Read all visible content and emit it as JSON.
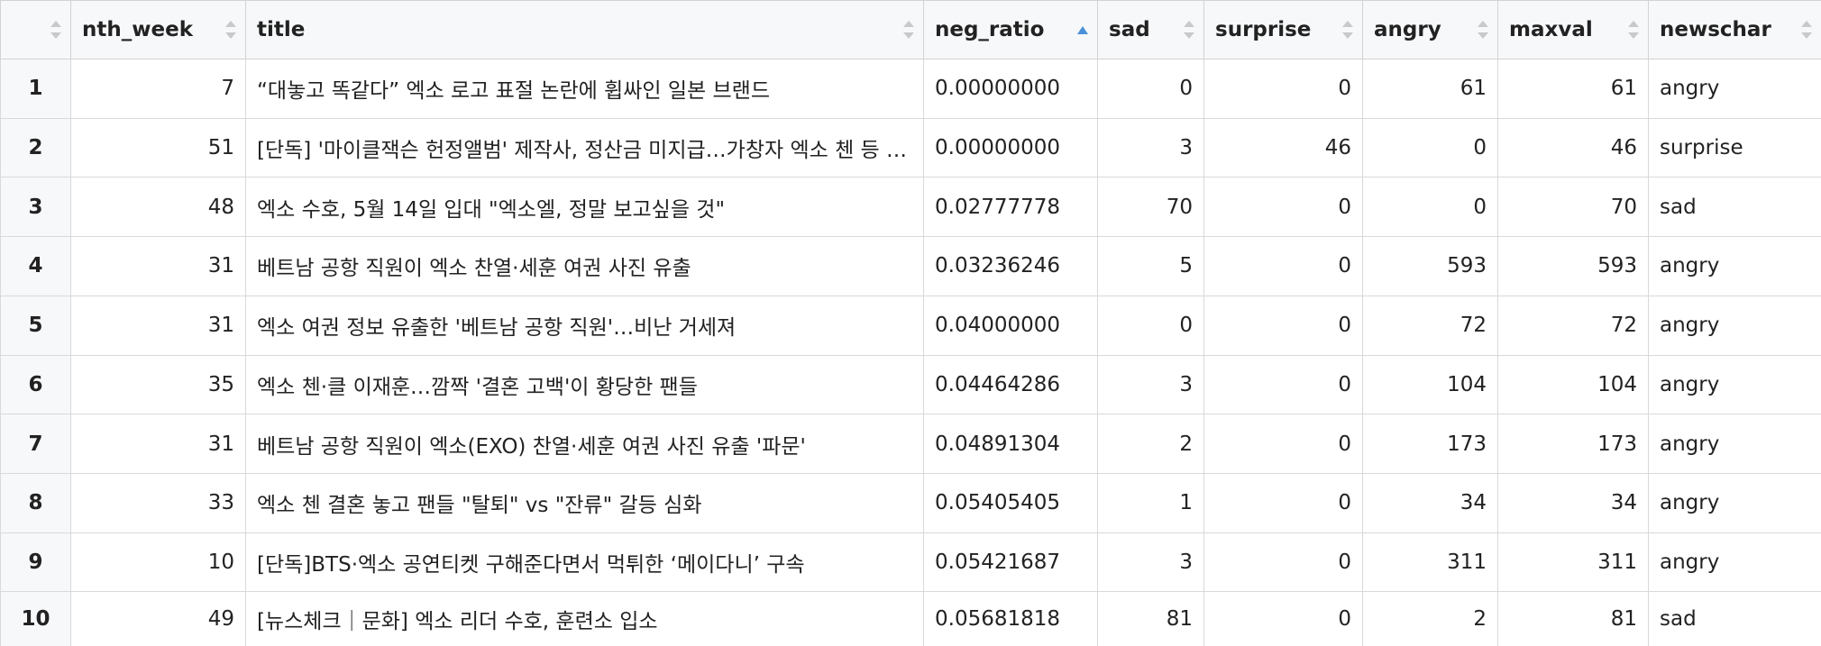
{
  "columns": {
    "rownum": "",
    "nth_week": "nth_week",
    "title": "title",
    "neg_ratio": "neg_ratio",
    "sad": "sad",
    "surprise": "surprise",
    "angry": "angry",
    "maxval": "maxval",
    "newschar": "newschar"
  },
  "sorted_column": "neg_ratio",
  "sort_direction": "ascending",
  "rows": [
    {
      "rownum": "1",
      "nth_week": "7",
      "title": "“대놓고 똑같다” 엑소 로고 표절 논란에 휩싸인 일본 브랜드",
      "neg_ratio": "0.00000000",
      "sad": "0",
      "surprise": "0",
      "angry": "61",
      "maxval": "61",
      "newschar": "angry"
    },
    {
      "rownum": "2",
      "nth_week": "51",
      "title": "[단독] '마이클잭슨 헌정앨범' 제작사, 정산금 미지급…가창자 엑소 첸 등 피해",
      "neg_ratio": "0.00000000",
      "sad": "3",
      "surprise": "46",
      "angry": "0",
      "maxval": "46",
      "newschar": "surprise"
    },
    {
      "rownum": "3",
      "nth_week": "48",
      "title": "엑소 수호, 5월 14일 입대 \"엑소엘, 정말 보고싶을 것\"",
      "neg_ratio": "0.02777778",
      "sad": "70",
      "surprise": "0",
      "angry": "0",
      "maxval": "70",
      "newschar": "sad"
    },
    {
      "rownum": "4",
      "nth_week": "31",
      "title": "베트남 공항 직원이 엑소 찬열·세훈 여권 사진 유출",
      "neg_ratio": "0.03236246",
      "sad": "5",
      "surprise": "0",
      "angry": "593",
      "maxval": "593",
      "newschar": "angry"
    },
    {
      "rownum": "5",
      "nth_week": "31",
      "title": "엑소 여권 정보 유출한 '베트남 공항 직원'…비난 거세져",
      "neg_ratio": "0.04000000",
      "sad": "0",
      "surprise": "0",
      "angry": "72",
      "maxval": "72",
      "newschar": "angry"
    },
    {
      "rownum": "6",
      "nth_week": "35",
      "title": "엑소 첸·클 이재훈…깜짝 '결혼 고백'이 황당한 팬들",
      "neg_ratio": "0.04464286",
      "sad": "3",
      "surprise": "0",
      "angry": "104",
      "maxval": "104",
      "newschar": "angry"
    },
    {
      "rownum": "7",
      "nth_week": "31",
      "title": "베트남 공항 직원이 엑소(EXO) 찬열·세훈 여권 사진 유출 '파문'",
      "neg_ratio": "0.04891304",
      "sad": "2",
      "surprise": "0",
      "angry": "173",
      "maxval": "173",
      "newschar": "angry"
    },
    {
      "rownum": "8",
      "nth_week": "33",
      "title": "엑소 첸 결혼 놓고 팬들 \"탈퇴\" vs \"잔류\" 갈등 심화",
      "neg_ratio": "0.05405405",
      "sad": "1",
      "surprise": "0",
      "angry": "34",
      "maxval": "34",
      "newschar": "angry"
    },
    {
      "rownum": "9",
      "nth_week": "10",
      "title": "[단독]BTS·엑소 공연티켓 구해준다면서 먹튀한 ‘메이다니’ 구속",
      "neg_ratio": "0.05421687",
      "sad": "3",
      "surprise": "0",
      "angry": "311",
      "maxval": "311",
      "newschar": "angry"
    },
    {
      "rownum": "10",
      "nth_week": "49",
      "title": "[뉴스체크｜문화] 엑소 리더 수호, 훈련소 입소",
      "neg_ratio": "0.05681818",
      "sad": "81",
      "surprise": "0",
      "angry": "2",
      "maxval": "81",
      "newschar": "sad"
    }
  ]
}
